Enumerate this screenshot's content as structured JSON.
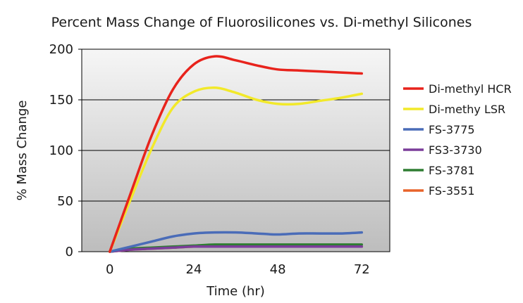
{
  "chart_data": {
    "type": "line",
    "title": "Percent Mass Change of Fluorosilicones vs. Di-methyl Silicones",
    "xlabel": "Time (hr)",
    "ylabel": "% Mass Change",
    "xlim": [
      -8,
      80
    ],
    "ylim": [
      0,
      200
    ],
    "xticks": [
      0,
      24,
      48,
      72
    ],
    "yticks": [
      0,
      50,
      100,
      150,
      200
    ],
    "grid": true,
    "legend_position": "right",
    "series": [
      {
        "name": "Di-methyl HCR",
        "color": "#e8231c",
        "x": [
          0,
          6,
          12,
          18,
          24,
          30,
          36,
          42,
          48,
          54,
          60,
          66,
          72
        ],
        "y": [
          0,
          58,
          115,
          160,
          185,
          193,
          189,
          184,
          180,
          179,
          178,
          177,
          176
        ]
      },
      {
        "name": "Di-methy LSR",
        "color": "#f2e92a",
        "x": [
          0,
          6,
          12,
          18,
          24,
          30,
          36,
          42,
          48,
          54,
          60,
          66,
          72
        ],
        "y": [
          0,
          52,
          102,
          142,
          158,
          162,
          157,
          150,
          146,
          146,
          149,
          152,
          156
        ]
      },
      {
        "name": "FS-3775",
        "color": "#4a6cb8",
        "x": [
          0,
          6,
          12,
          18,
          24,
          30,
          36,
          42,
          48,
          54,
          60,
          66,
          72
        ],
        "y": [
          0,
          5,
          10,
          15,
          18,
          19,
          19,
          18,
          17,
          18,
          18,
          18,
          19
        ]
      },
      {
        "name": "FS3-3730",
        "color": "#7b3d9a",
        "x": [
          0,
          6,
          12,
          18,
          24,
          30,
          36,
          42,
          48,
          54,
          60,
          66,
          72
        ],
        "y": [
          0,
          2,
          3,
          4,
          5,
          5,
          5,
          5,
          5,
          5,
          5,
          5,
          5
        ]
      },
      {
        "name": "FS-3781",
        "color": "#2f7d32",
        "x": [
          0,
          6,
          12,
          18,
          24,
          30,
          36,
          42,
          48,
          54,
          60,
          66,
          72
        ],
        "y": [
          0,
          3,
          4,
          5,
          6,
          7,
          7,
          7,
          7,
          7,
          7,
          7,
          7
        ]
      },
      {
        "name": "FS-3551",
        "color": "#e8632a",
        "x": [
          0,
          6,
          12,
          18,
          24,
          30,
          36,
          42,
          48,
          54,
          60,
          66,
          72
        ],
        "y": [
          0,
          2,
          3,
          4,
          5,
          5,
          5,
          5,
          5,
          5,
          5,
          5,
          5
        ]
      }
    ]
  }
}
